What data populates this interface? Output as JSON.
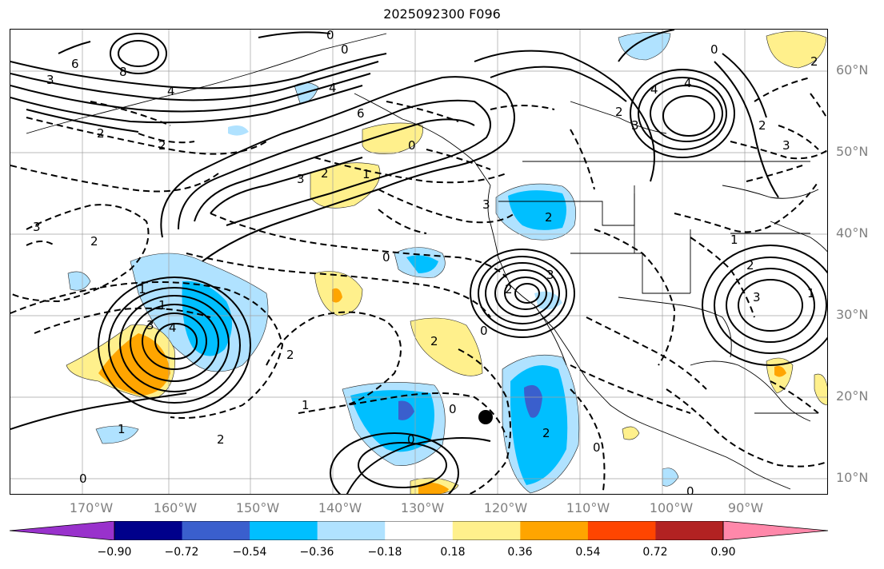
{
  "title": "2025092300 F096",
  "lat_labels": [
    "60°N",
    "50°N",
    "40°N",
    "30°N",
    "20°N",
    "10°N"
  ],
  "lon_labels": [
    "170°W",
    "160°W",
    "150°W",
    "140°W",
    "130°W",
    "120°W",
    "110°W",
    "100°W",
    "90°W"
  ],
  "colorbar": {
    "ticks": [
      "−0.90",
      "−0.72",
      "−0.54",
      "−0.36",
      "−0.18",
      "0.18",
      "0.36",
      "0.54",
      "0.72",
      "0.90"
    ],
    "colors": [
      "#9932cc",
      "#00008b",
      "#3a5fcd",
      "#00bfff",
      "#b0e2ff",
      "#ffffff",
      "#fff08c",
      "#ffa500",
      "#ff4500",
      "#b22222",
      "#ff88aa"
    ]
  },
  "contour_labels": [
    "6",
    "8",
    "4",
    "3",
    "2",
    "0",
    "0",
    "4",
    "6",
    "2",
    "0",
    "3",
    "2",
    "1",
    "3",
    "4",
    "3",
    "2",
    "2",
    "4",
    "2",
    "0",
    "2",
    "3",
    "3",
    "2",
    "3",
    "1",
    "1",
    "1",
    "3",
    "4",
    "0",
    "0",
    "2",
    "1",
    "2",
    "1",
    "0",
    "0",
    "2",
    "2",
    "0",
    "0",
    "0",
    "3",
    "2",
    "1",
    "2"
  ],
  "marker": "storm-center-dot"
}
